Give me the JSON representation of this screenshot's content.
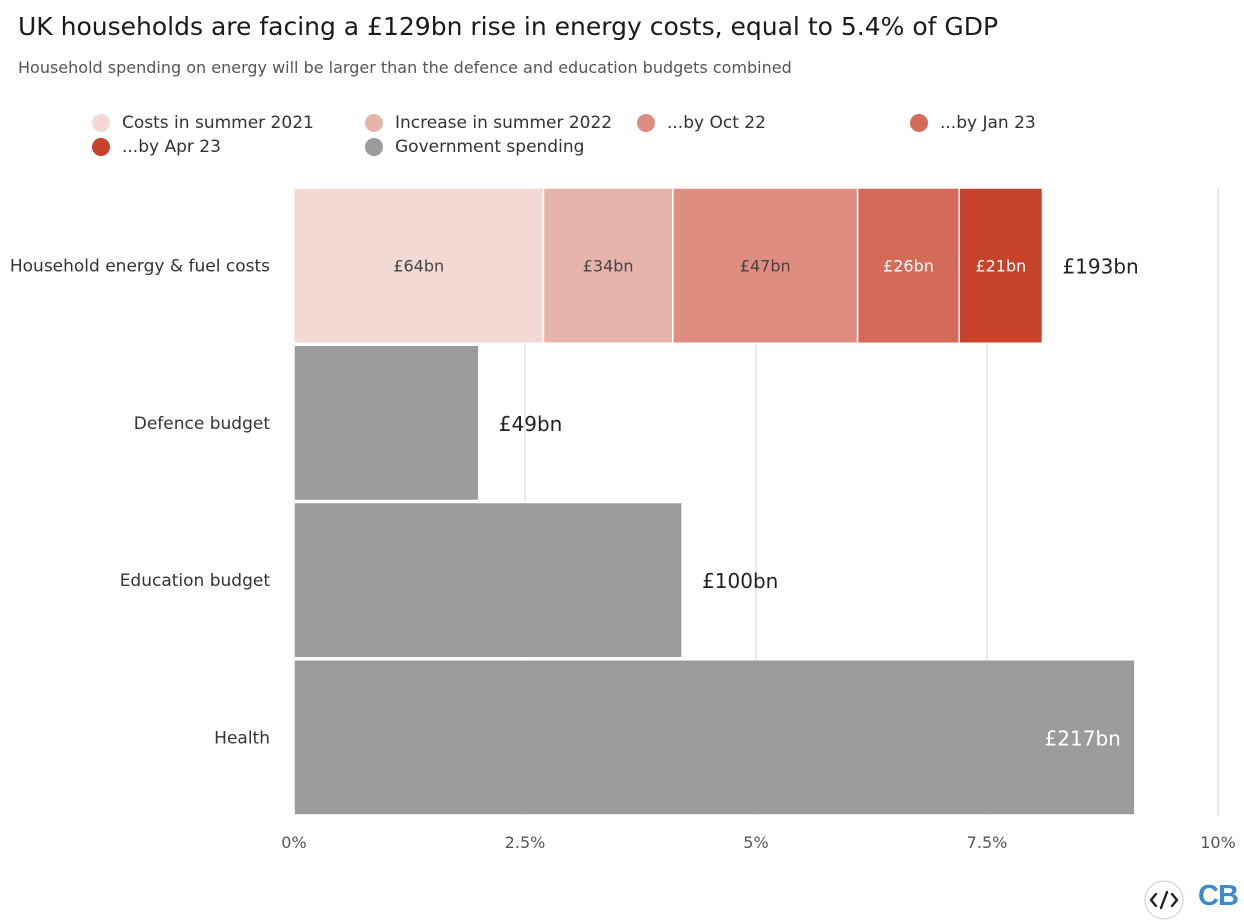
{
  "title": "UK households are facing a £129bn rise in energy costs, equal to 5.4% of GDP",
  "subtitle": "Household spending on energy will be larger than the defence and education budgets combined",
  "legend": [
    {
      "label": "Costs in summer 2021",
      "color": "#f2d9d4"
    },
    {
      "label": "Increase in summer 2022",
      "color": "#e7b4ab"
    },
    {
      "label": "...by Oct 22",
      "color": "#de8d80"
    },
    {
      "label": "...by Jan 23",
      "color": "#d46a58"
    },
    {
      "label": "...by Apr 23",
      "color": "#c8412b"
    },
    {
      "label": "Government spending",
      "color": "#9b9b9b"
    }
  ],
  "chart_data": {
    "type": "bar",
    "orientation": "horizontal",
    "stacked": true,
    "x_unit": "% of GDP",
    "xlim": [
      0,
      10
    ],
    "x_ticks": [
      "0%",
      "2.5%",
      "5%",
      "7.5%",
      "10%"
    ],
    "grid": true,
    "legend_position": "top",
    "categories": [
      "Household energy & fuel costs",
      "Defence budget",
      "Education budget",
      "Health"
    ],
    "bars": [
      {
        "category": "Household energy & fuel costs",
        "total_label": "£193bn",
        "segments": [
          {
            "series": "Costs in summer 2021",
            "value": 2.7,
            "label": "£64bn",
            "color": "#f2d9d4",
            "label_color": "#444444"
          },
          {
            "series": "Increase in summer 2022",
            "value": 1.4,
            "label": "£34bn",
            "color": "#e7b4ab",
            "label_color": "#444444"
          },
          {
            "series": "...by Oct 22",
            "value": 2.0,
            "label": "£47bn",
            "color": "#de8d80",
            "label_color": "#444444"
          },
          {
            "series": "...by Jan 23",
            "value": 1.1,
            "label": "£26bn",
            "color": "#d46a58",
            "label_color": "#ffffff"
          },
          {
            "series": "...by Apr 23",
            "value": 0.9,
            "label": "£21bn",
            "color": "#c8412b",
            "label_color": "#ffffff"
          }
        ]
      },
      {
        "category": "Defence budget",
        "total_label": "£49bn",
        "segments": [
          {
            "series": "Government spending",
            "value": 2.0,
            "color": "#9b9b9b"
          }
        ]
      },
      {
        "category": "Education budget",
        "total_label": "£100bn",
        "segments": [
          {
            "series": "Government spending",
            "value": 4.2,
            "color": "#9b9b9b"
          }
        ]
      },
      {
        "category": "Health",
        "total_label": "£217bn",
        "total_label_inside": true,
        "segments": [
          {
            "series": "Government spending",
            "value": 9.1,
            "color": "#9b9b9b"
          }
        ]
      }
    ]
  },
  "footer": {
    "embed_icon": "code-embed-icon",
    "logo": "CB",
    "logo_color": "#3a8ad1"
  }
}
